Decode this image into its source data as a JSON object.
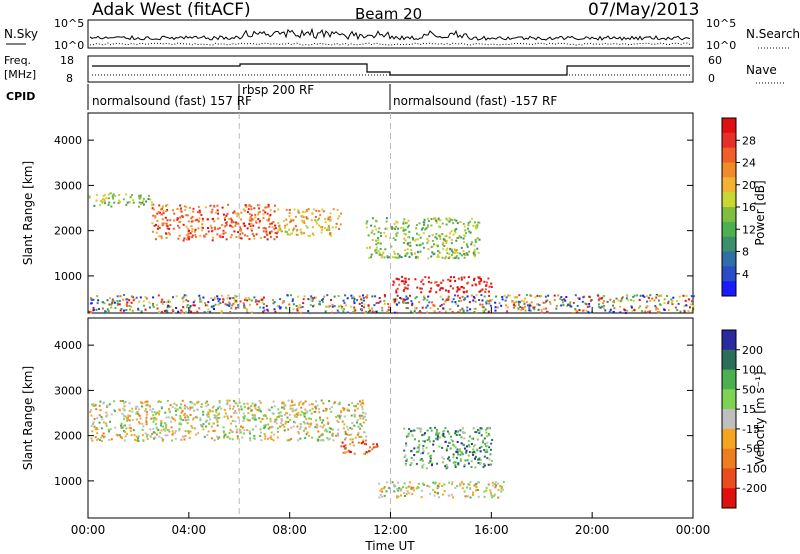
{
  "header": {
    "station": "Adak West (fitACF)",
    "beam": "Beam 20",
    "date": "07/May/2013"
  },
  "noise_panel": {
    "left_label": "N.Sky",
    "right_label": "N.Search",
    "ticks": [
      "10^5",
      "10^0"
    ],
    "right_ticks": [
      "10^5",
      "10^0"
    ]
  },
  "freq_panel": {
    "left_label_1": "Freq.",
    "left_label_2": "[MHz]",
    "left_ticks": [
      "18",
      "8"
    ],
    "right_label": "Nave",
    "right_ticks": [
      "60",
      "0"
    ]
  },
  "cpid_panel": {
    "label": "CPID",
    "segments": [
      {
        "label": "normalsound (fast) 157 RF",
        "start_hour": 0,
        "end_hour": 6
      },
      {
        "label": "rbsp 200 RF",
        "start_hour": 6,
        "end_hour": 12
      },
      {
        "label": "normalsound (fast) -157 RF",
        "start_hour": 12,
        "end_hour": 24
      }
    ]
  },
  "chart_data": [
    {
      "type": "heatmap",
      "title": "",
      "xlabel": "Time UT",
      "ylabel": "Slant Range [km]",
      "xlim": [
        0,
        24
      ],
      "ylim": [
        180,
        4600
      ],
      "x_ticks": [
        "00:00",
        "04:00",
        "08:00",
        "12:00",
        "16:00",
        "20:00",
        "00:00"
      ],
      "y_ticks": [
        1000,
        2000,
        3000,
        4000
      ],
      "colorbar": {
        "label": "Power [dB]",
        "ticks": [
          "4",
          "8",
          "12",
          "16",
          "20",
          "24",
          "28"
        ],
        "colors": [
          "#1a1aff",
          "#2a4cc8",
          "#2e6fa8",
          "#3b8f6a",
          "#4caf50",
          "#7fbf3f",
          "#c8d832",
          "#f2b233",
          "#f08a2a",
          "#ef5f27",
          "#e8302a",
          "#e01010"
        ]
      },
      "dashed_lines_hours": [
        6,
        12
      ],
      "features": [
        {
          "name": "band 2600-2800 km",
          "time_start": 0,
          "time_end": 2.5,
          "range_start": 2550,
          "range_end": 2850,
          "level": 5
        },
        {
          "name": "descending band",
          "time_start": 2.5,
          "time_end": 7.5,
          "range_start": 1800,
          "range_end": 2600,
          "level": 9
        },
        {
          "name": "band near 2300 km",
          "time_start": 7.5,
          "time_end": 10,
          "range_start": 1900,
          "range_end": 2500,
          "level": 7
        },
        {
          "name": "strong echoes 700-1000 km",
          "time_start": 12,
          "time_end": 16,
          "range_start": 650,
          "range_end": 1000,
          "level": 11
        },
        {
          "name": "scatter 1500-2200 km",
          "time_start": 11,
          "time_end": 15.5,
          "range_start": 1400,
          "range_end": 2300,
          "level": 5
        },
        {
          "name": "sparse near-range clutter",
          "time_start": 0,
          "time_end": 24,
          "range_start": 200,
          "range_end": 600,
          "level": 6
        }
      ]
    },
    {
      "type": "heatmap",
      "title": "",
      "xlabel": "Time UT",
      "ylabel": "Slant Range [km]",
      "xlim": [
        0,
        24
      ],
      "ylim": [
        180,
        4600
      ],
      "x_ticks": [
        "00:00",
        "04:00",
        "08:00",
        "12:00",
        "16:00",
        "20:00",
        "00:00"
      ],
      "y_ticks": [
        1000,
        2000,
        3000,
        4000
      ],
      "colorbar": {
        "label": "Velocity [m s⁻¹]",
        "ticks": [
          "200",
          "100",
          "50",
          "15",
          "-15",
          "-50",
          "-100",
          "-200"
        ],
        "colors": [
          "#2a2aa0",
          "#2b6f5a",
          "#4caf50",
          "#7dd352",
          "#bfbfbf",
          "#f7a521",
          "#ee7d1f",
          "#ea4c1d",
          "#e01010"
        ]
      },
      "dashed_lines_hours": [
        6,
        12
      ],
      "features": [
        {
          "name": "ground scatter band",
          "time_start": 0,
          "time_end": 11,
          "range_start": 1900,
          "range_end": 2800,
          "level": 4
        },
        {
          "name": "low-velocity echoes",
          "time_start": 11.5,
          "time_end": 16.5,
          "range_start": 650,
          "range_end": 1000,
          "level": 4
        },
        {
          "name": "positive velocities",
          "time_start": 12.5,
          "time_end": 16,
          "range_start": 1300,
          "range_end": 2200,
          "level": 2
        },
        {
          "name": "negative velocities",
          "time_start": 10,
          "time_end": 11.5,
          "range_start": 1600,
          "range_end": 1900,
          "level": 7
        }
      ]
    }
  ]
}
